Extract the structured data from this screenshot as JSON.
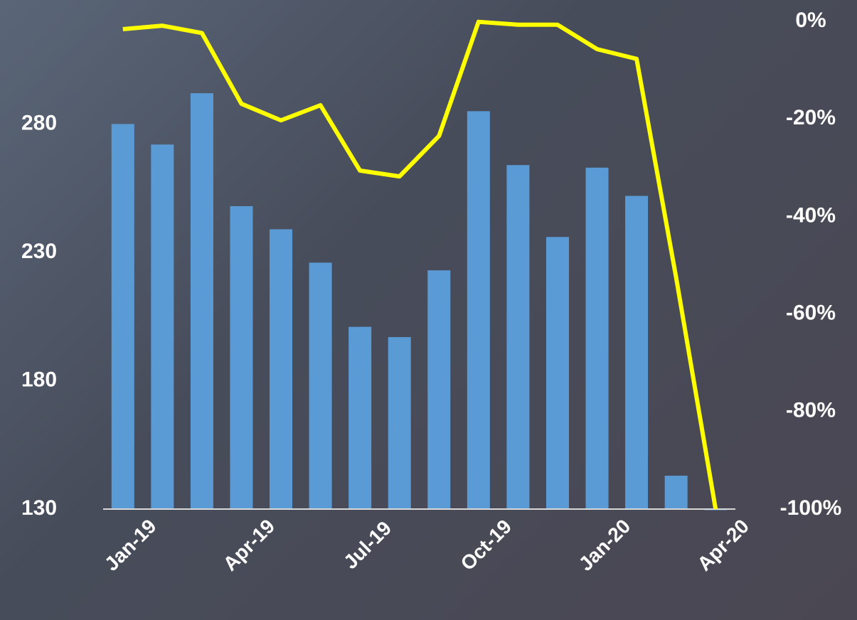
{
  "chart_data": {
    "type": "bar_line",
    "categories": [
      "Jan-19",
      null,
      null,
      "Apr-19",
      null,
      null,
      "Jul-19",
      null,
      null,
      "Oct-19",
      null,
      null,
      "Jan-20",
      null,
      null,
      "Apr-20"
    ],
    "series": [
      {
        "type": "bar",
        "color": "#5b9bd5",
        "axis": "y",
        "values": [
          280,
          272,
          292,
          248,
          239,
          226,
          201,
          197,
          223,
          285,
          264,
          236,
          263,
          252,
          143,
          130
        ]
      },
      {
        "type": "line",
        "color": "#ffff00",
        "axis": "y2",
        "values": [
          -1.6,
          -0.9,
          -2.4,
          -16.9,
          -20.3,
          -17.2,
          -30.6,
          -31.8,
          -23.5,
          -0.1,
          -0.7,
          -0.7,
          -5.7,
          -7.7,
          -52.5,
          -100
        ]
      }
    ],
    "ylim": [
      130,
      320
    ],
    "yticks": [
      130,
      180,
      230,
      280
    ],
    "y2lim": [
      -100,
      0
    ],
    "y2ticks": [
      {
        "value": 0,
        "label": "0%"
      },
      {
        "value": -20,
        "label": "-20%"
      },
      {
        "value": -40,
        "label": "-40%"
      },
      {
        "value": -60,
        "label": "-60%"
      },
      {
        "value": -80,
        "label": "-80%"
      },
      {
        "value": -100,
        "label": "-100%"
      }
    ]
  }
}
